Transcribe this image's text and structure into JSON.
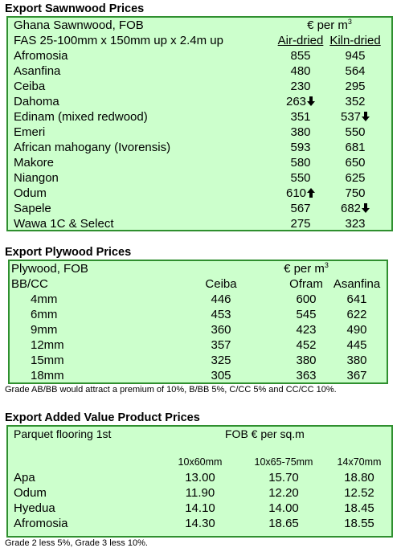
{
  "sawnwood": {
    "title": "Export Sawnwood Prices",
    "label": "Ghana Sawnwood, FOB",
    "unit": "€ per m",
    "unit_sup": "3",
    "spec": "FAS 25-100mm x 150mm up x 2.4m up",
    "columns": [
      "Air-dried",
      "Kiln-dried"
    ],
    "rows": [
      [
        "Afromosia",
        "855",
        "945"
      ],
      [
        "Asanfina",
        "480",
        "564"
      ],
      [
        "Ceiba",
        "230",
        "295"
      ],
      [
        "Dahoma",
        "263",
        "352"
      ],
      [
        "Edinam (mixed redwood)",
        "351",
        "537"
      ],
      [
        "Emeri",
        "380",
        "550"
      ],
      [
        "African mahogany (Ivorensis)",
        "593",
        "681"
      ],
      [
        "Makore",
        "580",
        "650"
      ],
      [
        "Niangon",
        "550",
        "625"
      ],
      [
        "Odum",
        "610",
        "750"
      ],
      [
        "Sapele",
        "567",
        "682"
      ],
      [
        "Wawa 1C & Select",
        "275",
        "323"
      ]
    ]
  },
  "plywood": {
    "title": "Export Plywood Prices",
    "label": "Plywood, FOB",
    "unit": "€ per m",
    "unit_sup": "3",
    "grade": "BB/CC",
    "columns": [
      "Ceiba",
      "Ofram",
      "Asanfina"
    ],
    "rows": [
      [
        "4mm",
        "446",
        "600",
        "641"
      ],
      [
        "6mm",
        "453",
        "545",
        "622"
      ],
      [
        "9mm",
        "360",
        "423",
        "490"
      ],
      [
        "12mm",
        "357",
        "452",
        "445"
      ],
      [
        "15mm",
        "325",
        "380",
        "380"
      ],
      [
        "18mm",
        "305",
        "363",
        "367"
      ]
    ],
    "note": "Grade AB/BB would attract a premium of 10%, B/BB 5%, C/CC 5% and CC/CC 10%."
  },
  "added_value": {
    "title": "Export Added Value Product Prices",
    "label": "Parquet flooring 1st",
    "unit": "FOB € per sq.m",
    "columns": [
      "10x60mm",
      "10x65-75mm",
      "14x70mm"
    ],
    "rows": [
      [
        "Apa",
        "13.00",
        "15.70",
        "18.80"
      ],
      [
        "Odum",
        "11.90",
        "12.20",
        "12.52"
      ],
      [
        "Hyedua",
        "14.10",
        "14.00",
        "18.45"
      ],
      [
        "Afromosia",
        "14.30",
        "18.65",
        "18.55"
      ]
    ],
    "note": "Grade 2 less 5%, Grade 3 less 10%."
  }
}
